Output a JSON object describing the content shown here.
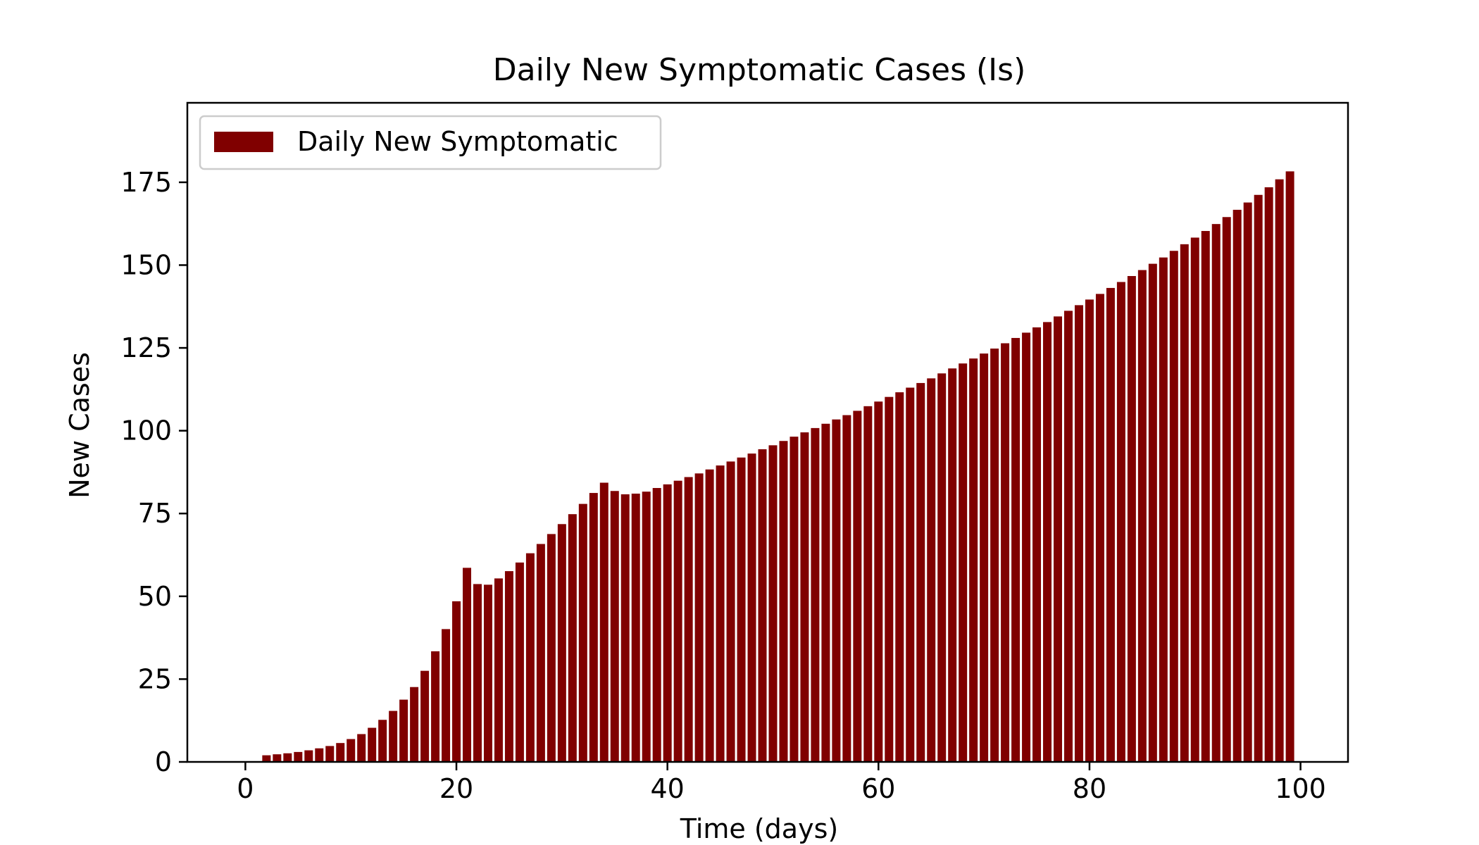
{
  "chart_data": {
    "type": "bar",
    "title": "Daily New Symptomatic Cases (Is)",
    "xlabel": "Time (days)",
    "ylabel": "New Cases",
    "xlim": [
      -5.5,
      104.5
    ],
    "ylim": [
      0,
      199
    ],
    "xticks": [
      0,
      20,
      40,
      60,
      80,
      100
    ],
    "yticks": [
      0,
      25,
      50,
      75,
      100,
      125,
      150,
      175
    ],
    "grid": false,
    "legend_position": "top-left",
    "bar_color": "#800000",
    "series": [
      {
        "name": "Daily New Symptomatic",
        "x": [
          0,
          1,
          2,
          3,
          4,
          5,
          6,
          7,
          8,
          9,
          10,
          11,
          12,
          13,
          14,
          15,
          16,
          17,
          18,
          19,
          20,
          21,
          22,
          23,
          24,
          25,
          26,
          27,
          28,
          29,
          30,
          31,
          32,
          33,
          34,
          35,
          36,
          37,
          38,
          39,
          40,
          41,
          42,
          43,
          44,
          45,
          46,
          47,
          48,
          49,
          50,
          51,
          52,
          53,
          54,
          55,
          56,
          57,
          58,
          59,
          60,
          61,
          62,
          63,
          64,
          65,
          66,
          67,
          68,
          69,
          70,
          71,
          72,
          73,
          74,
          75,
          76,
          77,
          78,
          79,
          80,
          81,
          82,
          83,
          84,
          85,
          86,
          87,
          88,
          89,
          90,
          91,
          92,
          93,
          94,
          95,
          96,
          97,
          98,
          99
        ],
        "values": [
          0,
          0,
          2.0,
          2.3,
          2.6,
          3.0,
          3.5,
          4.1,
          4.8,
          5.7,
          6.9,
          8.4,
          10.3,
          12.7,
          15.4,
          18.8,
          22.6,
          27.5,
          33.4,
          40.1,
          48.5,
          58.6,
          53.7,
          53.5,
          55.4,
          57.6,
          60.2,
          63.0,
          65.8,
          68.8,
          71.8,
          74.8,
          77.9,
          81.2,
          84.3,
          81.8,
          80.8,
          81.0,
          81.6,
          82.7,
          83.8,
          84.9,
          86.0,
          87.1,
          88.3,
          89.5,
          90.7,
          91.9,
          93.1,
          94.4,
          95.6,
          96.9,
          98.2,
          99.5,
          100.8,
          102.1,
          103.4,
          104.7,
          106.0,
          107.4,
          108.8,
          110.2,
          111.6,
          113.0,
          114.4,
          115.8,
          117.3,
          118.8,
          120.3,
          121.8,
          123.3,
          124.8,
          126.4,
          128.0,
          129.6,
          131.2,
          132.8,
          134.5,
          136.2,
          137.9,
          139.6,
          141.3,
          143.1,
          144.9,
          146.7,
          148.5,
          150.4,
          152.3,
          154.3,
          156.3,
          158.3,
          160.3,
          162.4,
          164.5,
          166.7,
          168.9,
          171.2,
          173.5,
          175.9,
          178.3
        ]
      }
    ]
  }
}
